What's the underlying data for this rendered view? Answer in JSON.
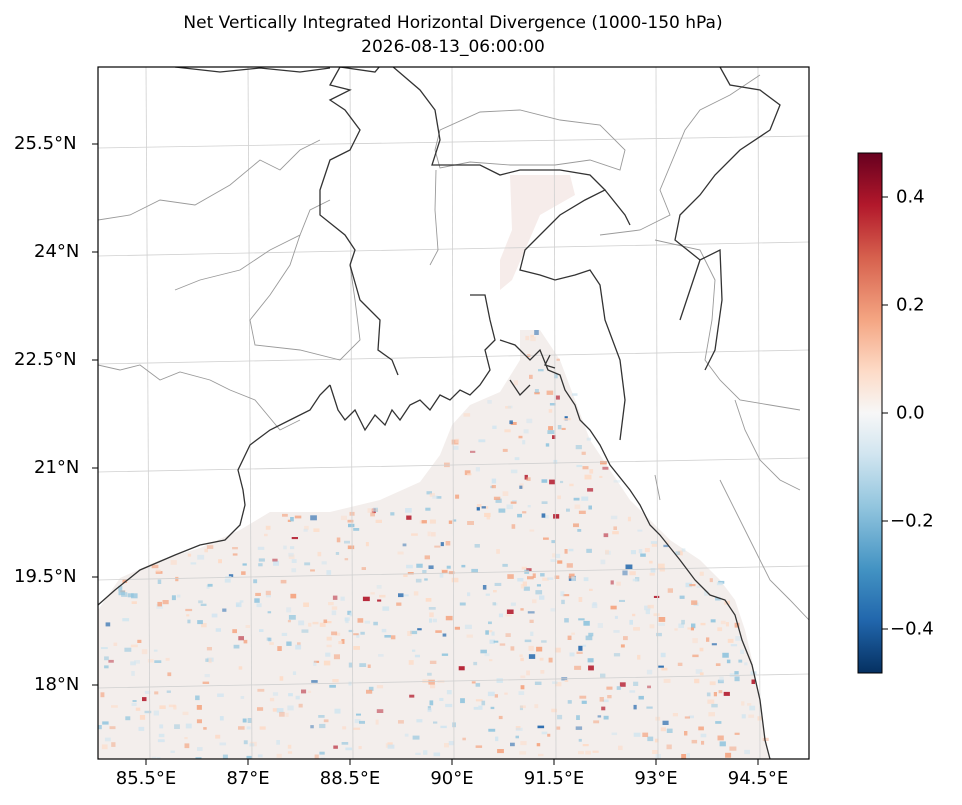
{
  "title": {
    "line1": "Net Vertically Integrated Horizontal Divergence (1000-150 hPa)",
    "line2": "2026-08-13_06:00:00"
  },
  "map": {
    "lat_ticks": [
      "25.5°N",
      "24°N",
      "22.5°N",
      "21°N",
      "19.5°N",
      "18°N"
    ],
    "lon_ticks": [
      "85.5°E",
      "87°E",
      "88.5°E",
      "90°E",
      "91.5°E",
      "93°E",
      "94.5°E"
    ],
    "field": "divergence",
    "colormap": "RdBu_r"
  },
  "colorbar": {
    "range": [
      -0.48,
      0.48
    ],
    "ticks": [
      "0.4",
      "0.2",
      "0.0",
      "−0.2",
      "−0.4"
    ],
    "colors": [
      "#67001f",
      "#b2182b",
      "#d6604d",
      "#f4a582",
      "#fddbc7",
      "#f7f7f7",
      "#d1e5f0",
      "#92c5de",
      "#4393c3",
      "#2166ac",
      "#053061"
    ]
  }
}
